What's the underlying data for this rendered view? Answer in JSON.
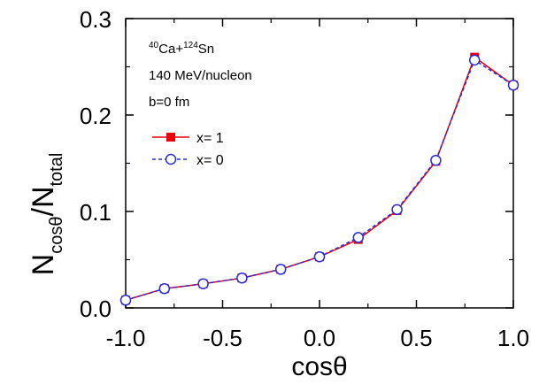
{
  "chart_data": {
    "type": "line",
    "x": [
      -1.0,
      -0.8,
      -0.6,
      -0.4,
      -0.2,
      0.0,
      0.2,
      0.4,
      0.6,
      0.8,
      1.0
    ],
    "series": [
      {
        "name": "x= 1",
        "values": [
          0.008,
          0.02,
          0.025,
          0.031,
          0.04,
          0.053,
          0.071,
          0.101,
          0.152,
          0.26,
          0.231
        ],
        "color": "#e8000b",
        "marker": "filled-square",
        "line_style": "solid"
      },
      {
        "name": "x= 0",
        "values": [
          0.008,
          0.02,
          0.025,
          0.031,
          0.04,
          0.053,
          0.073,
          0.102,
          0.153,
          0.257,
          0.231
        ],
        "color": "#2b2bd6",
        "marker": "open-circle",
        "line_style": "dashed"
      }
    ],
    "xlim": [
      -1.0,
      1.0
    ],
    "ylim": [
      0.0,
      0.3
    ],
    "x_ticks": [
      "-1.0",
      "-0.5",
      "0.0",
      "0.5",
      "1.0"
    ],
    "y_ticks": [
      "0.0",
      "0.1",
      "0.2",
      "0.3"
    ],
    "grid": false,
    "legend_position": "middle-left",
    "annotations": {
      "reaction": {
        "mass1": "40",
        "elem1": "Ca",
        "plus": "+",
        "mass2": "124",
        "elem2": "Sn"
      },
      "energy": "140 MeV/nucleon",
      "impact": "b=0 fm"
    },
    "ylabel": {
      "main1": "N",
      "sub1": "cosθ",
      "slash": "/N",
      "sub2": "total"
    },
    "xlabel": "cosθ"
  }
}
